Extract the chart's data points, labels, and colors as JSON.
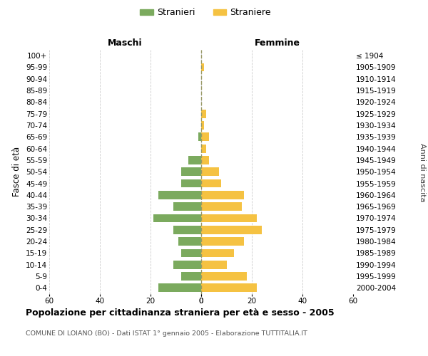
{
  "age_groups": [
    "100+",
    "95-99",
    "90-94",
    "85-89",
    "80-84",
    "75-79",
    "70-74",
    "65-69",
    "60-64",
    "55-59",
    "50-54",
    "45-49",
    "40-44",
    "35-39",
    "30-34",
    "25-29",
    "20-24",
    "15-19",
    "10-14",
    "5-9",
    "0-4"
  ],
  "birth_years": [
    "≤ 1904",
    "1905-1909",
    "1910-1914",
    "1915-1919",
    "1920-1924",
    "1925-1929",
    "1930-1934",
    "1935-1939",
    "1940-1944",
    "1945-1949",
    "1950-1954",
    "1955-1959",
    "1960-1964",
    "1965-1969",
    "1970-1974",
    "1975-1979",
    "1980-1984",
    "1985-1989",
    "1990-1994",
    "1995-1999",
    "2000-2004"
  ],
  "maschi": [
    0,
    0,
    0,
    0,
    0,
    0,
    0,
    1,
    0,
    5,
    8,
    8,
    17,
    11,
    19,
    11,
    9,
    8,
    11,
    8,
    17
  ],
  "femmine": [
    0,
    1,
    0,
    0,
    0,
    2,
    1,
    3,
    2,
    3,
    7,
    8,
    17,
    16,
    22,
    24,
    17,
    13,
    10,
    18,
    22
  ],
  "male_color": "#7baa5e",
  "female_color": "#f5c242",
  "male_label": "Stranieri",
  "female_label": "Straniere",
  "title": "Popolazione per cittadinanza straniera per età e sesso - 2005",
  "subtitle": "COMUNE DI LOIANO (BO) - Dati ISTAT 1° gennaio 2005 - Elaborazione TUTTITALIA.IT",
  "header_left": "Maschi",
  "header_right": "Femmine",
  "ylabel_left": "Fasce di età",
  "ylabel_right": "Anni di nascita",
  "xlim": 60,
  "background_color": "#ffffff",
  "grid_color": "#cccccc",
  "dashed_color": "#999966"
}
